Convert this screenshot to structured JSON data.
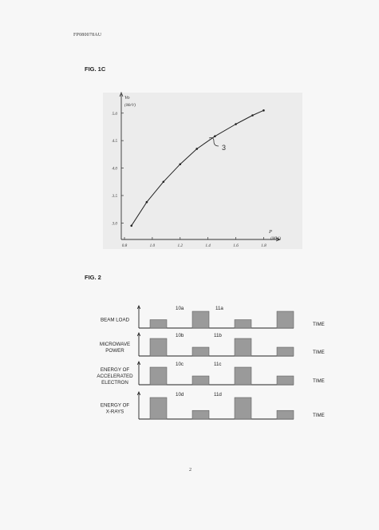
{
  "document": {
    "id": "FP080078AU",
    "page_number": "2"
  },
  "fig1c": {
    "label": "FIG. 1C",
    "chart_data": {
      "type": "line",
      "x_label": "P",
      "x_unit": "(MW)",
      "y_label": "Vo",
      "y_unit": "(MeV)",
      "x_ticks": [
        "0.8",
        "1.0",
        "1.2",
        "1.4",
        "1.6",
        "1.8"
      ],
      "y_ticks": [
        "3.0",
        "3.5",
        "4.0",
        "4.5",
        "5.0"
      ],
      "xlim": [
        0.8,
        1.8
      ],
      "ylim": [
        2.7,
        5.2
      ],
      "curve_label": "3",
      "series": [
        {
          "x": [
            0.85,
            0.96,
            1.08,
            1.2,
            1.32,
            1.45,
            1.6,
            1.72,
            1.8
          ],
          "y": [
            2.95,
            3.38,
            3.75,
            4.07,
            4.35,
            4.58,
            4.8,
            4.96,
            5.05
          ]
        }
      ]
    }
  },
  "fig2": {
    "label": "FIG. 2",
    "time_label": "TIME",
    "rows": [
      {
        "label": [
          "BEAM LOAD"
        ],
        "ref_high": "10a",
        "ref_low": "11a",
        "pulses": [
          0.5,
          1,
          0.5,
          1
        ]
      },
      {
        "label": [
          "MICROWAVE",
          "POWER"
        ],
        "ref_high": "10b",
        "ref_low": "11b",
        "pulses": [
          1,
          0.5,
          1,
          0.5
        ]
      },
      {
        "label": [
          "ENERGY OF",
          "ACCELERATED",
          "ELECTRON"
        ],
        "ref_high": "10c",
        "ref_low": "11c",
        "pulses": [
          1,
          0.5,
          1,
          0.5
        ]
      },
      {
        "label": [
          "ENERGY  OF",
          "X-RAYS"
        ],
        "ref_high": "10d",
        "ref_low": "11d",
        "pulses": [
          1,
          0.4,
          1,
          0.4
        ]
      }
    ]
  }
}
